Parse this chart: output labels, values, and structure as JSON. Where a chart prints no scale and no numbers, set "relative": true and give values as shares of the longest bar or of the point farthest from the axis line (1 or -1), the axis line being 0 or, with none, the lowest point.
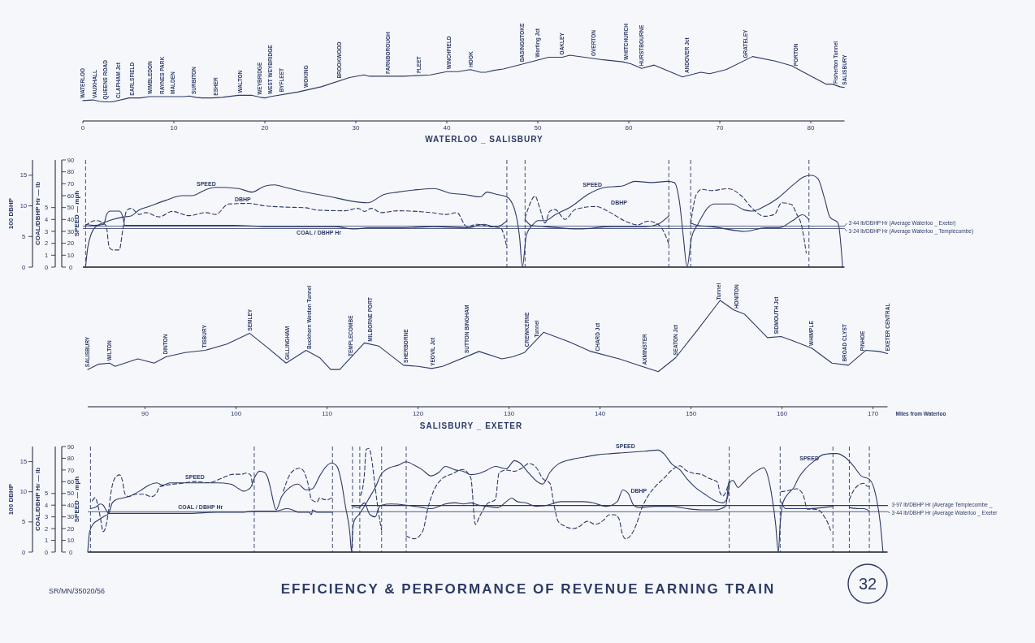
{
  "chart_data": [
    {
      "type": "line",
      "relative": true,
      "title": "WATERLOO _ SALISBURY",
      "color": "#2c3a66",
      "xlim": [
        0,
        83.7
      ],
      "xticks": [
        0,
        10,
        20,
        30,
        40,
        50,
        60,
        70,
        80
      ],
      "x": [
        0,
        1.1,
        1.8,
        2.4,
        3.2,
        5.1,
        6.3,
        7.3,
        11.1,
        11.7,
        12.4,
        13.1,
        14.2,
        15.3,
        17.1,
        18.6,
        19.5,
        20.0,
        20.6,
        23.6,
        26.2,
        29.3,
        30.9,
        31.5,
        35.3,
        38.2,
        40.0,
        41.2,
        42.6,
        43.7,
        44.3,
        45.2,
        46.2,
        48.2,
        51.2,
        52.7,
        53.5,
        57.2,
        59.3,
        60.2,
        61.4,
        62.8,
        65.9,
        67.9,
        68.9,
        70.7,
        73.6,
        76.1,
        77.9,
        79.1,
        81.7,
        82.4,
        83.2,
        83.7
      ],
      "values": [
        0.31,
        0.32,
        0.3,
        0.29,
        0.29,
        0.35,
        0.35,
        0.37,
        0.37,
        0.38,
        0.36,
        0.35,
        0.35,
        0.36,
        0.39,
        0.39,
        0.36,
        0.35,
        0.37,
        0.44,
        0.52,
        0.66,
        0.7,
        0.68,
        0.68,
        0.7,
        0.75,
        0.75,
        0.78,
        0.74,
        0.74,
        0.77,
        0.79,
        0.86,
        0.97,
        0.97,
        1,
        0.93,
        0.9,
        0.87,
        0.8,
        0.85,
        0.67,
        0.74,
        0.72,
        0.78,
        0.98,
        0.91,
        0.84,
        0.75,
        0.56,
        0.56,
        0.52,
        0.51
      ],
      "annotations": [
        {
          "text": "WATERLOO",
          "x": 0,
          "y": 0.31
        },
        {
          "text": "VAUXHALL",
          "x": 1.3,
          "y": 0.31
        },
        {
          "text": "QUEENS ROAD",
          "x": 2.5,
          "y": 0.29
        },
        {
          "text": "CLAPHAM Jct",
          "x": 3.9,
          "y": 0.31
        },
        {
          "text": "EARLSFIELD",
          "x": 5.4,
          "y": 0.35
        },
        {
          "text": "WIMBLEDON",
          "x": 7.4,
          "y": 0.37
        },
        {
          "text": "RAYNES PARK",
          "x": 8.7,
          "y": 0.37
        },
        {
          "text": "MALDEN",
          "x": 9.9,
          "y": 0.37
        },
        {
          "text": "SURBITON",
          "x": 12.2,
          "y": 0.37
        },
        {
          "text": "ESHER",
          "x": 14.6,
          "y": 0.35
        },
        {
          "text": "WALTON",
          "x": 17.3,
          "y": 0.39
        },
        {
          "text": "WEYBRIDGE",
          "x": 19.4,
          "y": 0.36
        },
        {
          "text": "WEST WEYBRIDGE",
          "x": 20.6,
          "y": 0.37
        },
        {
          "text": "BYFLEET",
          "x": 21.8,
          "y": 0.4
        },
        {
          "text": "WOKING",
          "x": 24.5,
          "y": 0.47
        },
        {
          "text": "BROOKWOOD",
          "x": 28.2,
          "y": 0.61
        },
        {
          "text": "FARNBOROUGH",
          "x": 33.5,
          "y": 0.68
        },
        {
          "text": "FLEET",
          "x": 36.9,
          "y": 0.69
        },
        {
          "text": "WINCHFIELD",
          "x": 40.2,
          "y": 0.75
        },
        {
          "text": "HOOK",
          "x": 42.6,
          "y": 0.78
        },
        {
          "text": "BASINGSTOKE",
          "x": 48.3,
          "y": 0.86
        },
        {
          "text": "Worting Jct",
          "x": 50.0,
          "y": 0.93
        },
        {
          "text": "OAKLEY",
          "x": 52.6,
          "y": 0.97
        },
        {
          "text": "OVERTON",
          "x": 56.1,
          "y": 0.95
        },
        {
          "text": "WHITCHURCH",
          "x": 59.7,
          "y": 0.89
        },
        {
          "text": "HURSTBOURNE",
          "x": 61.4,
          "y": 0.8
        },
        {
          "text": "ANDOVER Jct",
          "x": 66.4,
          "y": 0.69
        },
        {
          "text": "GRATELEY",
          "x": 72.8,
          "y": 0.92
        },
        {
          "text": "PORTON",
          "x": 78.4,
          "y": 0.8
        },
        {
          "text": "Fisherton Tunnel",
          "x": 82.7,
          "y": 0.53
        },
        {
          "text": "SALISBURY",
          "x": 83.7,
          "y": 0.51
        }
      ]
    },
    {
      "type": "line",
      "tick_labels": "y",
      "xlim": [
        0,
        83.7
      ],
      "ylim": [
        0,
        90
      ],
      "yticks": [
        0,
        10,
        20,
        30,
        40,
        50,
        60,
        70,
        80,
        90
      ],
      "ylabel": "SPEED — mph",
      "y2lim": [
        0,
        17.5
      ],
      "y2ticks": [
        0,
        5,
        10,
        15
      ],
      "y2label": "100 DBHP",
      "y3lim": [
        0,
        9
      ],
      "y3ticks": [
        0,
        1,
        2,
        3,
        4,
        5
      ],
      "y3label": "COAL/DBHP Hr — lb",
      "series": [
        {
          "name": "SPEED",
          "color": "#2c3a66",
          "x": [
            0.3,
            0.55,
            1.3,
            2.55,
            3.3,
            4.4,
            5.3,
            6.2,
            7.3,
            9.1,
            10.9,
            12.0,
            13.5,
            14.6,
            17.1,
            18.6,
            20.0,
            21.1,
            22.2,
            25.1,
            27.3,
            29.1,
            31.3,
            33.1,
            34.6,
            36.8,
            38.6,
            40.4,
            41.9,
            43.7,
            44.4,
            45.5,
            46.6,
            47.5,
            48.0,
            48.3,
            48.75,
            49.5,
            50.0,
            50.8,
            51.9,
            53.7,
            55.5,
            57.4,
            59.2,
            60.7,
            62.5,
            64.3,
            65.0,
            65.6,
            66.0,
            66.4,
            66.9,
            67.6,
            68.7,
            69.4,
            71.3,
            72.7,
            73.5,
            74.9,
            76.4,
            78.2,
            79.3,
            80.1,
            80.8,
            81.5,
            82.1,
            83.0,
            83.5
          ],
          "values": [
            0,
            17,
            33,
            38,
            40,
            42,
            43,
            48,
            51,
            56,
            60,
            60,
            65,
            67,
            66,
            63,
            68,
            69,
            67,
            62,
            59,
            56,
            54,
            61,
            63,
            65,
            66,
            62,
            61,
            59,
            63,
            61,
            59,
            47,
            25,
            0,
            27,
            36,
            39,
            39,
            44,
            51,
            61,
            67,
            68,
            72,
            71,
            72,
            71,
            53,
            25,
            0,
            25,
            36,
            50,
            53,
            53,
            48,
            47,
            51,
            58,
            70,
            76,
            77,
            74,
            58,
            42,
            37,
            0
          ]
        },
        {
          "name": "DBHP",
          "color": "#2c3a66",
          "axis": "y2",
          "line_style": "dashed",
          "x": [
            0.3,
            1.4,
            2.55,
            2.9,
            3.3,
            4.0,
            4.4,
            4.8,
            5.3,
            6.2,
            6.9,
            8.4,
            9.8,
            11.7,
            13.5,
            14.6,
            16.0,
            18.2,
            20.0,
            22.2,
            24.4,
            25.9,
            28.8,
            30.2,
            31.0,
            31.7,
            32.8,
            34.6,
            38.3,
            40.0,
            41.1,
            42.2,
            43.3,
            44.8,
            45.9,
            46.6,
            47.6,
            48.6,
            49.1,
            49.7,
            50.2,
            50.8,
            51.3,
            51.9,
            53.0,
            54.1,
            56.3,
            58.1,
            59.6,
            61.0,
            62.1,
            63.2,
            64.0,
            64.4,
            65.6,
            66.8,
            67.4,
            68.0,
            69.1,
            70.9,
            72.4,
            73.5,
            74.9,
            76.0,
            76.8,
            77.9,
            78.4,
            79.0,
            79.5
          ],
          "values": [
            6.8,
            7.6,
            6.8,
            3.2,
            2.8,
            2.8,
            6.2,
            9.2,
            9.6,
            8.6,
            8.9,
            8.2,
            9.1,
            8.4,
            8.9,
            8.6,
            10.3,
            10.4,
            10.0,
            9.8,
            9.7,
            9.3,
            9.2,
            9.6,
            9.1,
            9.6,
            8.9,
            9.2,
            8.9,
            8.6,
            8.9,
            6.6,
            7.0,
            6.6,
            6.4,
            3.2,
            null,
            8.0,
            10.2,
            11.6,
            9.7,
            7.2,
            9.1,
            9.4,
            7.8,
            9.4,
            9.9,
            8.8,
            7.5,
            6.9,
            7.5,
            7.0,
            5.3,
            3.7,
            null,
            7.0,
            11.8,
            12.7,
            12.5,
            12.8,
            11.6,
            9.7,
            8.3,
            8.6,
            10.5,
            10.2,
            8.8,
            6.7,
            2.3
          ]
        },
        {
          "name": "COAL / DBHP Hr",
          "color": "#2c3a66",
          "axis": "y3",
          "x": [
            0.3,
            1.3,
            2.3,
            2.6,
            3.0,
            4.0,
            4.4,
            4.6,
            6.2,
            9.1,
            12.9,
            16.6,
            20.3,
            23.9,
            27.6,
            29.8,
            31.3,
            34.9,
            38.6,
            42.2,
            44.1,
            45.2,
            45.9,
            46.6,
            47.6,
            48.6,
            49.3,
            50.8,
            54.5,
            58.1,
            61.8,
            63.2,
            64.4,
            65.6,
            66.8,
            67.6,
            69.1,
            72.8,
            75.0,
            76.5,
            78.0,
            79.1,
            79.8
          ],
          "values": [
            3.6,
            3.5,
            3.6,
            4.4,
            4.7,
            4.7,
            4.2,
            3.5,
            3.5,
            3.5,
            3.5,
            3.5,
            3.4,
            3.4,
            3.4,
            3.2,
            3.3,
            3.3,
            3.4,
            3.3,
            3.6,
            3.4,
            3.5,
            3.9,
            null,
            4.0,
            3.5,
            3.4,
            3.2,
            3.4,
            3.4,
            3.6,
            4.3,
            null,
            3.7,
            3.5,
            3.4,
            3.0,
            3.3,
            3.3,
            3.9,
            4.4,
            4.0
          ]
        }
      ],
      "ref_lines": [
        {
          "axis": "y3",
          "value": 3.44,
          "label": "3·44 lb/DBHP Hr (Average Waterloo _ Exeter)"
        },
        {
          "axis": "y3",
          "value": 3.24,
          "label": "3·24 lb/DBHP Hr (Average Waterloo _ Templecombe)"
        },
        {
          "axis": "x",
          "value": 0.3,
          "line_style": "dashed"
        },
        {
          "axis": "x",
          "value": 46.6,
          "line_style": "dashed"
        },
        {
          "axis": "x",
          "value": 48.6,
          "line_style": "dashed"
        },
        {
          "axis": "x",
          "value": 64.4,
          "line_style": "dashed"
        },
        {
          "axis": "x",
          "value": 66.8,
          "line_style": "dashed"
        },
        {
          "axis": "x",
          "value": 79.8,
          "line_style": "dashed"
        }
      ],
      "annotations": [
        {
          "text": "SPEED",
          "x": 56,
          "y": 64
        },
        "DBHP"
      ]
    },
    {
      "type": "line",
      "relative": true,
      "title": "SALISBURY _ EXETER",
      "xlabel": "Miles from Waterloo",
      "color": "#2c3a66",
      "xlim": [
        83.7,
        171.6
      ],
      "xticks": [
        90,
        100,
        110,
        120,
        130,
        140,
        150,
        160,
        170
      ],
      "x": [
        83.7,
        84.9,
        86.1,
        86.7,
        89.2,
        91.0,
        92.3,
        94.4,
        96.6,
        99.0,
        101.5,
        103.4,
        105.5,
        107.7,
        109.2,
        110.4,
        111.4,
        114.1,
        115.7,
        118.4,
        120.0,
        121.5,
        122.7,
        126.7,
        129.2,
        130.4,
        131.7,
        133.8,
        136.6,
        139.0,
        142.1,
        144.6,
        146.4,
        148.3,
        150.7,
        153.2,
        154.7,
        155.9,
        158.4,
        159.9,
        161.2,
        163.3,
        165.5,
        167.3,
        169.2,
        170.7,
        171.6
      ],
      "values": [
        0.35,
        0.4,
        0.41,
        0.38,
        0.45,
        0.41,
        0.47,
        0.51,
        0.53,
        0.59,
        0.69,
        0.56,
        0.41,
        0.53,
        0.46,
        0.35,
        0.35,
        0.6,
        0.57,
        0.39,
        0.38,
        0.36,
        0.38,
        0.52,
        0.45,
        0.47,
        0.51,
        0.7,
        0.61,
        0.52,
        0.45,
        0.38,
        0.33,
        0.46,
        0.72,
        1,
        0.91,
        0.87,
        0.65,
        0.66,
        0.62,
        0.55,
        0.41,
        0.39,
        0.53,
        0.52,
        0.5
      ],
      "annotations": [
        {
          "text": "SALISBURY",
          "x": 83.7,
          "y": 0.35
        },
        {
          "text": "WILTON",
          "x": 86.1,
          "y": 0.41
        },
        {
          "text": "DINTON",
          "x": 92.2,
          "y": 0.47
        },
        {
          "text": "TISBURY",
          "x": 96.5,
          "y": 0.53
        },
        {
          "text": "SEMLEY",
          "x": 101.5,
          "y": 0.69
        },
        {
          "text": "GILLINGHAM",
          "x": 105.6,
          "y": 0.42
        },
        {
          "text": "Buckhorn Weston Tunnel",
          "x": 108.0,
          "y": 0.52
        },
        {
          "text": "TEMPLECOMBE",
          "x": 112.6,
          "y": 0.45
        },
        {
          "text": "MILBORNE PORT",
          "x": 114.7,
          "y": 0.59
        },
        {
          "text": "SHERBORNE",
          "x": 118.7,
          "y": 0.39
        },
        {
          "text": "YEOVIL Jct",
          "x": 121.6,
          "y": 0.36
        },
        {
          "text": "SUTTON BINGHAM",
          "x": 125.4,
          "y": 0.48
        },
        {
          "text": "CREWKERNE",
          "x": 132.0,
          "y": 0.54
        },
        {
          "text": "Tunnel",
          "x": 133.0,
          "y": 0.63
        },
        {
          "text": "CHARD Jct",
          "x": 139.7,
          "y": 0.5
        },
        {
          "text": "AXMINSTER",
          "x": 144.9,
          "y": 0.37
        },
        {
          "text": "SEATON Jct",
          "x": 148.3,
          "y": 0.46
        },
        {
          "text": "Tunnel",
          "x": 153.0,
          "y": 0.98
        },
        {
          "text": "HONITON",
          "x": 155.0,
          "y": 0.9
        },
        {
          "text": "SIDMOUTH Jct",
          "x": 159.4,
          "y": 0.66
        },
        {
          "text": "WHIMPLE",
          "x": 163.2,
          "y": 0.55
        },
        {
          "text": "BROAD CLYST",
          "x": 166.9,
          "y": 0.4
        },
        {
          "text": "PINHOE",
          "x": 168.8,
          "y": 0.5
        },
        {
          "text": "EXETER CENTRAL",
          "x": 171.6,
          "y": 0.5
        }
      ]
    },
    {
      "type": "line",
      "tick_labels": "y",
      "title": "EFFICIENCY & PERFORMANCE OF REVENUE EARNING TRAIN",
      "xlim": [
        83.7,
        171.6
      ],
      "ylim": [
        0,
        90
      ],
      "yticks": [
        0,
        10,
        20,
        30,
        40,
        50,
        60,
        70,
        80,
        90
      ],
      "ylabel": "SPEED — mph",
      "y2lim": [
        0,
        17.5
      ],
      "y2ticks": [
        0,
        5,
        10,
        15
      ],
      "y2label": "100 DBHP",
      "y3lim": [
        0,
        9
      ],
      "y3ticks": [
        0,
        1,
        2,
        3,
        4,
        5
      ],
      "y3label": "COAL/DBHP Hr — lb",
      "series": [
        {
          "name": "SPEED",
          "color": "#2c3a66",
          "x": [
            83.7,
            83.9,
            84.3,
            84.8,
            85.4,
            86.0,
            86.4,
            86.9,
            87.5,
            88.4,
            89.4,
            90.4,
            91.3,
            91.9,
            92.8,
            94.0,
            95.5,
            97.9,
            99.4,
            100.3,
            100.8,
            101.6,
            102.0,
            102.6,
            103.1,
            103.5,
            103.8,
            104.1,
            104.4,
            105.0,
            105.9,
            106.8,
            107.7,
            108.4,
            109.2,
            109.9,
            110.5,
            111.1,
            111.6,
            112.0,
            112.5,
            112.7,
            112.8,
            113.0,
            113.5,
            114.1,
            114.7,
            115.3,
            116.0,
            116.9,
            117.8,
            118.7,
            119.6,
            120.5,
            121.4,
            122.3,
            123.0,
            124.1,
            124.9,
            125.8,
            126.7,
            127.6,
            128.5,
            129.7,
            130.6,
            131.2,
            132.1,
            133.3,
            133.7,
            134.5,
            135.4,
            136.9,
            138.3,
            139.8,
            141.3,
            143.1,
            144.9,
            146.4,
            147.0,
            147.9,
            148.8,
            149.6,
            150.5,
            151.4,
            152.6,
            153.5,
            154.0,
            154.3,
            154.6,
            155.2,
            155.6,
            156.5,
            157.4,
            158.0,
            158.4,
            158.9,
            159.3,
            159.6,
            159.8,
            160.1,
            160.7,
            161.3,
            161.8,
            162.7,
            163.6,
            164.5,
            165.6,
            166.0,
            166.9,
            167.8,
            168.7,
            169.6,
            170.0,
            170.4,
            170.8,
            171.1
          ],
          "values": [
            0,
            17,
            24,
            27,
            30,
            33,
            42,
            45,
            46,
            48,
            52,
            57,
            59,
            57,
            59,
            59,
            59,
            59,
            58,
            54,
            52,
            55,
            63,
            69,
            68,
            63,
            54,
            43,
            36,
            47,
            55,
            58,
            53,
            54,
            65,
            73,
            76,
            73,
            59,
            40,
            17,
            0,
            17,
            27,
            32,
            39,
            47,
            55,
            67,
            72,
            74,
            77,
            74,
            70,
            65,
            68,
            73,
            70,
            69,
            66,
            67,
            70,
            73,
            71,
            78,
            76,
            68,
            59,
            58,
            68,
            75,
            79,
            81,
            83,
            84,
            85,
            86,
            87,
            84,
            75,
            70,
            62,
            55,
            50,
            44,
            42,
            46,
            60,
            61,
            55,
            58,
            65,
            70,
            72,
            66,
            47,
            24,
            0,
            24,
            42,
            50,
            55,
            63,
            72,
            78,
            83,
            84,
            84,
            81,
            74,
            65,
            62,
            57,
            45,
            25,
            0
          ]
        },
        {
          "name": "DBHP",
          "color": "#2c3a66",
          "axis": "y2",
          "line_style": "dashed",
          "x": [
            84.2,
            84.5,
            84.8,
            85.1,
            85.4,
            85.7,
            86.0,
            86.3,
            86.7,
            87.2,
            87.5,
            87.8,
            88.2,
            89.0,
            89.8,
            90.7,
            91.3,
            91.6,
            92.8,
            94.0,
            95.5,
            97.0,
            98.5,
            99.7,
            100.6,
            101.1,
            101.6,
            101.8,
            103.5,
            105.2,
            105.9,
            106.5,
            107.0,
            107.4,
            107.9,
            108.3,
            108.9,
            109.2,
            109.7,
            110.1,
            110.5,
            112.0,
            113.7,
            114.1,
            114.3,
            114.6,
            114.9,
            115.2,
            115.5,
            115.8,
            116.0,
            117.4,
            118.7,
            119.6,
            120.5,
            121.1,
            121.7,
            122.6,
            123.8,
            124.9,
            125.8,
            126.3,
            126.8,
            127.6,
            128.5,
            128.9,
            129.7,
            130.6,
            131.5,
            132.2,
            133.0,
            133.7,
            134.5,
            134.9,
            135.4,
            136.0,
            137.1,
            137.7,
            138.6,
            139.5,
            140.4,
            141.0,
            141.6,
            142.1,
            142.4,
            142.8,
            143.4,
            144.0,
            144.6,
            145.2,
            146.1,
            147.0,
            147.9,
            148.8,
            149.4,
            150.2,
            151.1,
            152.0,
            152.9,
            153.2,
            153.5,
            154.0,
            154.2,
            157.0,
            159.9,
            160.7,
            161.6,
            162.3,
            162.8,
            163.5,
            164.1,
            164.6,
            165.1,
            165.4,
            166.5,
            167.4,
            167.8,
            168.4,
            169.0,
            169.4,
            169.6
          ],
          "values": [
            8.5,
            9.0,
            7.9,
            5.6,
            3.4,
            4.3,
            7.0,
            10.3,
            12.3,
            12.8,
            11.9,
            9.6,
            9.2,
            9.6,
            9.6,
            9.2,
            9.9,
            10.8,
            11.2,
            11.4,
            11.7,
            11.5,
            12.3,
            12.9,
            12.9,
            13.1,
            12.8,
            11.0,
            null,
            10.1,
            12.8,
            13.7,
            13.9,
            13.5,
            11.4,
            8.7,
            8.3,
            9.0,
            8.7,
            8.7,
            9.0,
            null,
            9.4,
            12.8,
            17.0,
            17.2,
            15.5,
            11.9,
            8.3,
            5.2,
            3.6,
            null,
            2.7,
            2.2,
            3.4,
            7.4,
            10.1,
            12.1,
            13.0,
            13.7,
            12.3,
            4.6,
            6.0,
            8.0,
            8.7,
            13.1,
            13.6,
            13.4,
            14.0,
            14.7,
            14.0,
            12.2,
            11.4,
            8.2,
            5.1,
            4.4,
            3.9,
            4.2,
            5.1,
            4.6,
            5.3,
            6.2,
            6.2,
            5.5,
            3.3,
            2.2,
            2.8,
            4.6,
            7.3,
            9.1,
            10.9,
            12.2,
            13.6,
            14.3,
            13.6,
            13.1,
            12.9,
            12.2,
            11.6,
            9.8,
            9.3,
            10.7,
            11.8,
            null,
            10.0,
            10.2,
            10.5,
            9.6,
            7.1,
            7.1,
            6.9,
            6.0,
            4.6,
            3.3,
            null,
            8.7,
            10.0,
            11.1,
            11.4,
            10.9,
            10.9
          ]
        },
        {
          "name": "COAL / DBHP Hr",
          "color": "#2c3a66",
          "axis": "y3",
          "x": [
            84.0,
            84.5,
            85.1,
            85.4,
            85.7,
            86.0,
            88.4,
            91.9,
            94.9,
            97.9,
            100.8,
            102.0,
            104.4,
            105.6,
            106.2,
            106.8,
            108.0,
            108.3,
            108.4,
            108.9,
            110.6,
            111.8,
            112.9,
            113.5,
            114.1,
            114.7,
            115.3,
            115.7,
            116.0,
            117.0,
            118.7,
            119.6,
            120.5,
            121.4,
            122.3,
            123.0,
            124.1,
            125.0,
            125.8,
            126.7,
            127.6,
            128.8,
            129.7,
            130.3,
            130.9,
            131.8,
            133.0,
            134.2,
            135.7,
            137.1,
            138.0,
            139.2,
            140.7,
            141.9,
            142.5,
            143.1,
            143.7,
            144.3,
            146.1,
            147.9,
            149.6,
            151.1,
            152.6,
            153.8,
            154.1,
            157.0,
            159.9,
            160.4,
            161.6,
            163.0,
            164.6,
            165.6,
            166.5,
            167.4,
            168.4,
            169.0,
            169.6
          ],
          "values": [
            3.7,
            3.8,
            4.1,
            4.0,
            3.6,
            3.3,
            3.3,
            3.3,
            3.3,
            3.4,
            3.4,
            3.5,
            3.5,
            3.7,
            3.6,
            3.4,
            3.4,
            3.2,
            3.6,
            3.4,
            3.4,
            null,
            3.9,
            3.8,
            4.2,
            3.2,
            3.0,
            3.8,
            4.0,
            4.1,
            4.0,
            3.9,
            3.8,
            3.7,
            3.9,
            4.1,
            4.2,
            4.1,
            4.2,
            4.0,
            3.9,
            3.8,
            4.3,
            4.6,
            4.3,
            4.2,
            3.9,
            4.0,
            4.3,
            4.3,
            4.3,
            4.2,
            3.9,
            4.3,
            5.3,
            5.0,
            4.0,
            3.8,
            3.9,
            3.9,
            3.7,
            3.6,
            3.6,
            3.9,
            5.8,
            null,
            4.3,
            3.7,
            3.7,
            3.7,
            3.8,
            3.9,
            null,
            3.8,
            3.7,
            3.7,
            3.5
          ]
        },
        {
          "name": "3·97 lb/DBHP Hr (Average Templecombe _",
          "color": "#2c3a66",
          "axis": "y3",
          "x": [
            112.7,
            171.6
          ],
          "values": [
            3.97,
            3.97
          ]
        }
      ],
      "ref_lines": [
        {
          "axis": "y3",
          "value": 3.44,
          "label": "3·44 lb/DBHP Hr (Average Waterloo _ Exeter"
        },
        {
          "axis": "x",
          "value": 84.0,
          "line_style": "dashed"
        },
        {
          "axis": "x",
          "value": 102.0,
          "line_style": "dashed"
        },
        {
          "axis": "x",
          "value": 110.6,
          "line_style": "dashed"
        },
        {
          "axis": "x",
          "value": 112.8,
          "line_style": "dashed"
        },
        {
          "axis": "x",
          "value": 113.6,
          "line_style": "dashed"
        },
        {
          "axis": "x",
          "value": 116.0,
          "line_style": "dashed"
        },
        {
          "axis": "x",
          "value": 118.7,
          "line_style": "dashed"
        },
        {
          "axis": "x",
          "value": 154.2,
          "line_style": "dashed"
        },
        {
          "axis": "x",
          "value": 159.8,
          "line_style": "dashed"
        },
        {
          "axis": "x",
          "value": 165.6,
          "line_style": "dashed"
        },
        {
          "axis": "x",
          "value": 167.4,
          "line_style": "dashed"
        },
        {
          "axis": "x",
          "value": 169.6,
          "line_style": "dashed"
        }
      ],
      "annotations": [
        {
          "text": "SPEED",
          "x": 142.8,
          "y": 85
        },
        {
          "text": "SPEED",
          "x": 163.0,
          "y": 75
        },
        "SR/MN/35020/56",
        "32"
      ]
    }
  ]
}
